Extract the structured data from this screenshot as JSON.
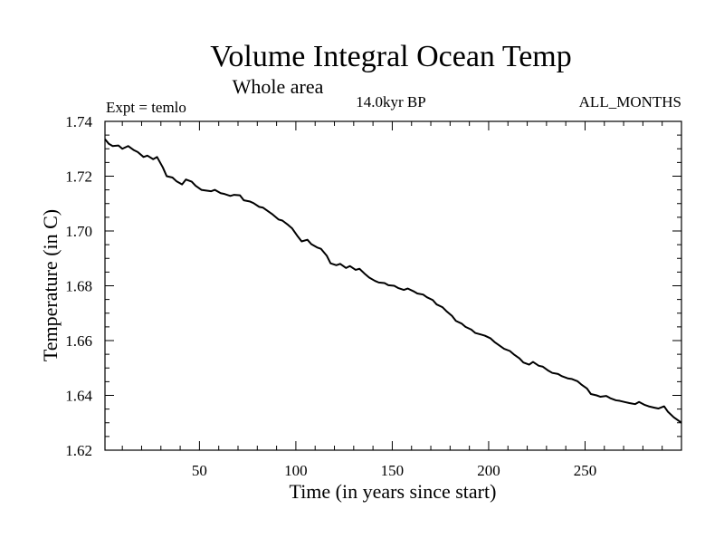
{
  "chart_data": {
    "type": "line",
    "title": "Volume Integral Ocean Temp",
    "subtitle": "Whole area",
    "annotations": {
      "left": "Expt = temlo",
      "center": "14.0kyr BP",
      "right": "ALL_MONTHS"
    },
    "xlabel": "Time (in years since start)",
    "ylabel": "Temperature (in C)",
    "xlim": [
      1,
      300
    ],
    "ylim": [
      1.62,
      1.74
    ],
    "xticks": [
      50,
      100,
      150,
      200,
      250
    ],
    "xtick_labels": [
      "50",
      "100",
      "150",
      "200",
      "250"
    ],
    "yticks": [
      1.62,
      1.64,
      1.66,
      1.68,
      1.7,
      1.72,
      1.74
    ],
    "ytick_labels": [
      "1.62",
      "1.64",
      "1.66",
      "1.68",
      "1.70",
      "1.72",
      "1.74"
    ],
    "grid": false,
    "series": [
      {
        "name": "Volume Integral Ocean Temp",
        "color": "#000000",
        "x": [
          1,
          3,
          5,
          8,
          10,
          13,
          16,
          18,
          21,
          23,
          26,
          28,
          31,
          33,
          36,
          38,
          41,
          43,
          46,
          48,
          51,
          53,
          56,
          58,
          61,
          63,
          66,
          68,
          71,
          73,
          76,
          78,
          81,
          83,
          86,
          88,
          91,
          93,
          96,
          98,
          101,
          103,
          106,
          108,
          111,
          113,
          116,
          118,
          121,
          123,
          126,
          128,
          131,
          133,
          136,
          138,
          141,
          143,
          146,
          148,
          151,
          153,
          156,
          158,
          161,
          163,
          166,
          168,
          171,
          173,
          176,
          178,
          181,
          183,
          186,
          188,
          191,
          193,
          196,
          198,
          201,
          203,
          206,
          208,
          211,
          213,
          216,
          218,
          221,
          223,
          226,
          228,
          231,
          233,
          236,
          238,
          241,
          243,
          246,
          248,
          251,
          253,
          256,
          258,
          261,
          263,
          266,
          268,
          271,
          273,
          276,
          278,
          281,
          283,
          286,
          288,
          291,
          293,
          296,
          298,
          300
        ],
        "values": [
          1.7335,
          1.7318,
          1.731,
          1.7312,
          1.73,
          1.731,
          1.7295,
          1.7288,
          1.727,
          1.7275,
          1.7262,
          1.727,
          1.7232,
          1.72,
          1.7195,
          1.7182,
          1.717,
          1.7188,
          1.718,
          1.7165,
          1.715,
          1.7148,
          1.7145,
          1.715,
          1.7138,
          1.7135,
          1.7128,
          1.7132,
          1.713,
          1.7112,
          1.7108,
          1.7102,
          1.7088,
          1.7085,
          1.707,
          1.706,
          1.7042,
          1.7038,
          1.7022,
          1.701,
          1.698,
          1.6962,
          1.6968,
          1.6952,
          1.694,
          1.6935,
          1.691,
          1.6882,
          1.6875,
          1.688,
          1.6865,
          1.6872,
          1.6858,
          1.6862,
          1.6842,
          1.683,
          1.6818,
          1.6812,
          1.681,
          1.6802,
          1.68,
          1.6792,
          1.6785,
          1.679,
          1.678,
          1.6772,
          1.6768,
          1.6758,
          1.6748,
          1.6732,
          1.6722,
          1.6708,
          1.669,
          1.6672,
          1.6662,
          1.665,
          1.664,
          1.6628,
          1.6622,
          1.6618,
          1.6608,
          1.6595,
          1.658,
          1.657,
          1.6562,
          1.655,
          1.6535,
          1.652,
          1.6512,
          1.6522,
          1.6508,
          1.6505,
          1.649,
          1.6482,
          1.6478,
          1.647,
          1.6462,
          1.646,
          1.6452,
          1.644,
          1.6425,
          1.6405,
          1.64,
          1.6395,
          1.6398,
          1.639,
          1.6382,
          1.638,
          1.6375,
          1.6372,
          1.6368,
          1.6376,
          1.6365,
          1.636,
          1.6355,
          1.6352,
          1.636,
          1.634,
          1.632,
          1.631,
          1.63
        ]
      }
    ]
  }
}
